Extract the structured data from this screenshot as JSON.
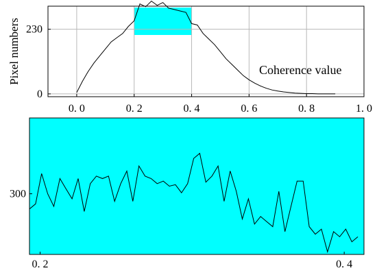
{
  "chart_data": [
    {
      "type": "line",
      "panel": "top",
      "xlabel": "",
      "ylabel": "Pixel numbers",
      "annotation": "Coherence value",
      "xlim": [
        -0.1,
        1.0
      ],
      "ylim": [
        -10,
        312
      ],
      "x_ticks": [
        0.0,
        0.2,
        0.4,
        0.6,
        0.8,
        1.0
      ],
      "x_tick_labels": [
        "0. 0",
        "0. 2",
        "0. 4",
        "0. 6",
        "0. 8",
        "1. 0"
      ],
      "y_ticks": [
        0,
        230
      ],
      "y_tick_labels": [
        "0",
        "230"
      ],
      "grid": true,
      "highlight_range_x": [
        0.2,
        0.4
      ],
      "highlight_color": "#00ffff",
      "line_color": "#000000",
      "series": [
        {
          "x": [
            0.0,
            0.02,
            0.04,
            0.06,
            0.08,
            0.1,
            0.12,
            0.14,
            0.16,
            0.18,
            0.2,
            0.22,
            0.24,
            0.26,
            0.28,
            0.3,
            0.32,
            0.34,
            0.36,
            0.38,
            0.4,
            0.42,
            0.44,
            0.46,
            0.48,
            0.5,
            0.52,
            0.54,
            0.56,
            0.58,
            0.6,
            0.62,
            0.64,
            0.66,
            0.68,
            0.7,
            0.72,
            0.74,
            0.76,
            0.78,
            0.8,
            0.82,
            0.84,
            0.86,
            0.88,
            0.9
          ],
          "values": [
            5,
            45,
            80,
            110,
            135,
            160,
            185,
            200,
            215,
            240,
            260,
            320,
            310,
            330,
            315,
            325,
            305,
            300,
            295,
            290,
            250,
            245,
            215,
            195,
            175,
            150,
            125,
            105,
            85,
            65,
            50,
            38,
            28,
            20,
            14,
            10,
            7,
            5,
            3,
            2,
            1,
            1,
            0,
            0,
            0,
            0
          ]
        }
      ]
    },
    {
      "type": "line",
      "panel": "bottom",
      "xlabel": "",
      "ylabel": "",
      "xlim": [
        0.193,
        0.413
      ],
      "ylim": [
        180,
        450
      ],
      "x_ticks": [
        0.2,
        0.4
      ],
      "x_tick_labels": [
        "0. 2",
        "0. 4"
      ],
      "y_ticks": [
        300
      ],
      "y_tick_labels": [
        "300"
      ],
      "background_color": "#00ffff",
      "line_color": "#000000",
      "series": [
        {
          "x": [
            0.193,
            0.197,
            0.201,
            0.205,
            0.209,
            0.213,
            0.217,
            0.221,
            0.225,
            0.229,
            0.233,
            0.237,
            0.241,
            0.245,
            0.249,
            0.253,
            0.257,
            0.261,
            0.265,
            0.269,
            0.273,
            0.277,
            0.281,
            0.285,
            0.289,
            0.293,
            0.297,
            0.301,
            0.305,
            0.309,
            0.313,
            0.317,
            0.321,
            0.325,
            0.329,
            0.333,
            0.337,
            0.341,
            0.345,
            0.349,
            0.353,
            0.357,
            0.361,
            0.365,
            0.369,
            0.373,
            0.377,
            0.381,
            0.385,
            0.389,
            0.393,
            0.397,
            0.401,
            0.405,
            0.409
          ],
          "values": [
            270,
            280,
            340,
            300,
            275,
            330,
            310,
            290,
            330,
            265,
            320,
            335,
            330,
            335,
            285,
            320,
            345,
            285,
            355,
            335,
            330,
            320,
            325,
            315,
            318,
            302,
            320,
            370,
            380,
            323,
            335,
            355,
            285,
            345,
            305,
            250,
            290,
            240,
            255,
            245,
            235,
            305,
            225,
            275,
            325,
            325,
            235,
            220,
            230,
            185,
            225,
            215,
            230,
            205,
            215
          ]
        }
      ]
    }
  ]
}
